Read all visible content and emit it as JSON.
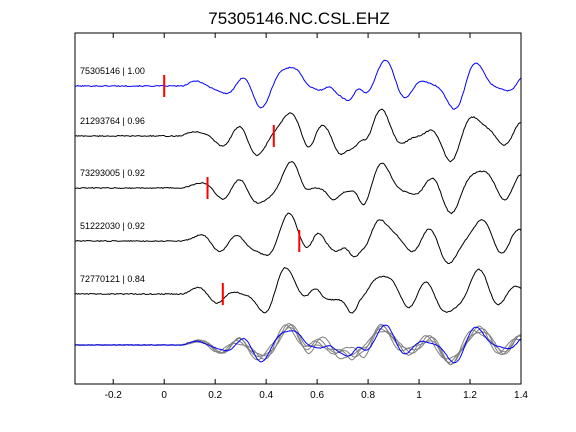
{
  "chart_data": {
    "type": "line",
    "title": "75305146.NC.CSL.EHZ",
    "xlabel": "",
    "ylabel": "",
    "xlim": [
      -0.35,
      1.4
    ],
    "xticks": [
      -0.2,
      0,
      0.2,
      0.4,
      0.6,
      0.8,
      1,
      1.2,
      1.4
    ],
    "xtick_labels": [
      "-0.2",
      "0",
      "0.2",
      "0.4",
      "0.6",
      "0.8",
      "1",
      "1.2",
      "1.4"
    ],
    "grid": false,
    "legend": "none",
    "colors": {
      "reference": "#0000ff",
      "others": "#000000",
      "picks": "#ff0000",
      "stack_others": "#808080"
    },
    "series": [
      {
        "label": "75305146 | 1.00",
        "pick": 0.0,
        "color": "#0000ff"
      },
      {
        "label": "21293764 | 0.96",
        "pick": 0.43,
        "color": "#000000"
      },
      {
        "label": "73293005 | 0.92",
        "pick": 0.17,
        "color": "#000000"
      },
      {
        "label": "51222030 | 0.92",
        "pick": 0.53,
        "color": "#000000"
      },
      {
        "label": "72770121 | 0.84",
        "pick": 0.23,
        "color": "#000000"
      }
    ]
  }
}
